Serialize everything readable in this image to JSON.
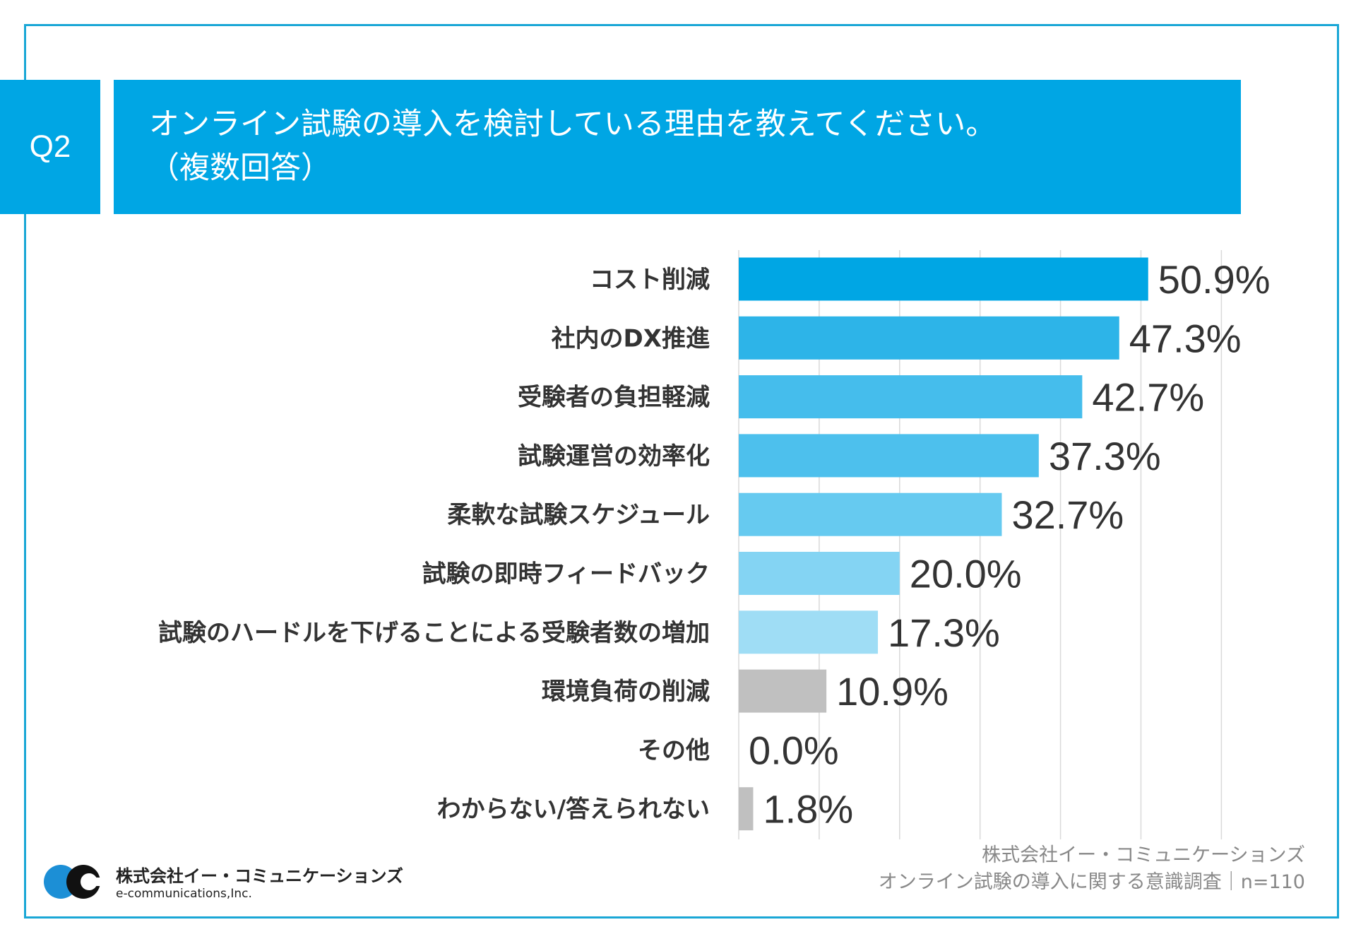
{
  "question_number": "Q2",
  "title_line1": "オンライン試験の導入を検討している理由を教えてください。",
  "title_line2": "（複数回答）",
  "chart_data": {
    "type": "bar",
    "orientation": "horizontal",
    "categories": [
      "コスト削減",
      "社内のDX推進",
      "受験者の負担軽減",
      "試験運営の効率化",
      "柔軟な試験スケジュール",
      "試験の即時フィードバック",
      "試験のハードルを下げることによる受験者数の増加",
      "環境負荷の削減",
      "その他",
      "わからない/答えられない"
    ],
    "values": [
      50.9,
      47.3,
      42.7,
      37.3,
      32.7,
      20.0,
      17.3,
      10.9,
      0.0,
      1.8
    ],
    "value_labels": [
      "50.9%",
      "47.3%",
      "42.7%",
      "37.3%",
      "32.7%",
      "20.0%",
      "17.3%",
      "10.9%",
      "0.0%",
      "1.8%"
    ],
    "colors": [
      "#00a6e4",
      "#2db4e8",
      "#45bdec",
      "#4dc0ed",
      "#66caf0",
      "#84d4f3",
      "#9fddf5",
      "#c0c0c0",
      "#c0c0c0",
      "#c0c0c0"
    ],
    "xlim": [
      0,
      60
    ],
    "grid": true
  },
  "footer": {
    "company": "株式会社イー・コミュニケーションズ",
    "survey": "オンライン試験の導入に関する意識調査｜n=110"
  },
  "logo": {
    "jp": "株式会社イー・コミュニケーションズ",
    "en": "e-communications,Inc."
  }
}
